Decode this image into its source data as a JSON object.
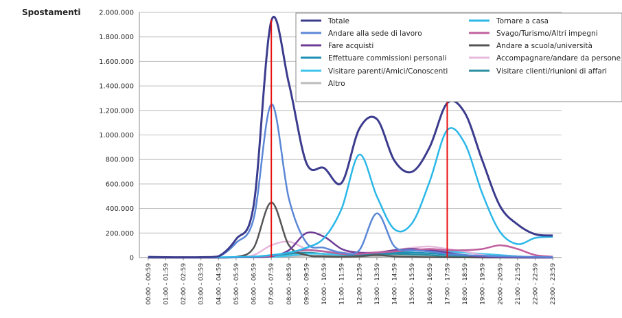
{
  "chart_data": {
    "type": "line",
    "ylabel": "Spostamenti",
    "ylim": [
      0,
      2000000
    ],
    "yticks": [
      "0",
      "200.000",
      "400.000",
      "600.000",
      "800.000",
      "1.000.000",
      "1.200.000",
      "1.400.000",
      "1.600.000",
      "1.800.000",
      "2.000.000"
    ],
    "ytick_values": [
      0,
      200000,
      400000,
      600000,
      800000,
      1000000,
      1200000,
      1400000,
      1600000,
      1800000,
      2000000
    ],
    "categories": [
      "00:00 - 00:59",
      "01:00 - 01:59",
      "02:00 - 02:59",
      "03:00 - 03:59",
      "04:00 - 04:59",
      "05:00 - 05:59",
      "06:00 - 06:59",
      "07:00 - 07:59",
      "08:00 - 08:59",
      "09:00 - 09:59",
      "10:00 - 10:59",
      "11:00 - 11:59",
      "12:00 - 12:59",
      "13:00 - 13:59",
      "14:00 - 14:59",
      "15:00 - 15:59",
      "16:00 - 16:59",
      "17:00 - 17:59",
      "18:00 - 18:59",
      "19:00 - 19:59",
      "20:00 - 20:59",
      "21:00 - 21:59",
      "22:00 - 22:59",
      "23:00 - 23:59"
    ],
    "grid": true,
    "legend_placement": "top-right",
    "vertical_markers": {
      "color": "#e8110f",
      "at_categories": [
        "07:00 - 07:59",
        "17:00 - 17:59"
      ]
    },
    "series": [
      {
        "name": "Totale",
        "color": "#3c3c8e",
        "values": [
          5000,
          3000,
          2000,
          3000,
          10000,
          150000,
          430000,
          1930000,
          1420000,
          770000,
          730000,
          610000,
          1050000,
          1130000,
          790000,
          700000,
          900000,
          1260000,
          1180000,
          790000,
          420000,
          270000,
          190000,
          180000
        ]
      },
      {
        "name": "Tornare a casa",
        "color": "#2ab7e8",
        "values": [
          3000,
          2000,
          1000,
          1000,
          2000,
          5000,
          8000,
          20000,
          40000,
          80000,
          160000,
          400000,
          840000,
          500000,
          230000,
          280000,
          620000,
          1040000,
          930000,
          520000,
          210000,
          110000,
          160000,
          170000
        ]
      },
      {
        "name": "Andare alla sede di lavoro",
        "color": "#5b87d6",
        "values": [
          2000,
          2000,
          1000,
          2000,
          8000,
          120000,
          320000,
          1250000,
          480000,
          120000,
          80000,
          40000,
          60000,
          360000,
          90000,
          60000,
          50000,
          30000,
          20000,
          15000,
          10000,
          8000,
          5000,
          3000
        ]
      },
      {
        "name": "Svago/Turismo/Altri impegni",
        "color": "#c0609e",
        "values": [
          5000,
          3000,
          2000,
          1000,
          1000,
          2000,
          5000,
          15000,
          40000,
          60000,
          50000,
          30000,
          30000,
          40000,
          50000,
          60000,
          70000,
          60000,
          60000,
          70000,
          100000,
          70000,
          20000,
          8000
        ]
      },
      {
        "name": "Fare acquisti",
        "color": "#6f3c96",
        "values": [
          0,
          0,
          0,
          0,
          0,
          1000,
          2000,
          10000,
          60000,
          200000,
          170000,
          70000,
          40000,
          40000,
          60000,
          70000,
          60000,
          40000,
          20000,
          8000,
          3000,
          1000,
          0,
          0
        ]
      },
      {
        "name": "Andare a scuola/università",
        "color": "#555555",
        "values": [
          0,
          0,
          0,
          0,
          0,
          5000,
          80000,
          450000,
          100000,
          20000,
          10000,
          5000,
          10000,
          20000,
          10000,
          5000,
          3000,
          2000,
          1000,
          0,
          0,
          0,
          0,
          0
        ]
      },
      {
        "name": "Effettuare commissioni personali",
        "color": "#1b8fb4",
        "values": [
          0,
          0,
          0,
          0,
          0,
          1000,
          3000,
          15000,
          40000,
          60000,
          50000,
          30000,
          30000,
          30000,
          40000,
          40000,
          35000,
          25000,
          15000,
          8000,
          3000,
          1000,
          0,
          0
        ]
      },
      {
        "name": "Accompagnare/andare da persone",
        "color": "#e6b8dc",
        "values": [
          0,
          0,
          0,
          0,
          0,
          5000,
          20000,
          100000,
          130000,
          70000,
          50000,
          40000,
          40000,
          45000,
          60000,
          80000,
          90000,
          70000,
          50000,
          20000,
          8000,
          3000,
          1000,
          0
        ]
      },
      {
        "name": "Visitare parenti/Amici/Conoscenti",
        "color": "#3fc4ec",
        "values": [
          0,
          0,
          0,
          0,
          0,
          1000,
          2000,
          5000,
          15000,
          30000,
          30000,
          25000,
          30000,
          40000,
          50000,
          55000,
          60000,
          50000,
          40000,
          30000,
          20000,
          10000,
          3000,
          1000
        ]
      },
      {
        "name": "Visitare clienti/riunioni di affari",
        "color": "#2a8fa0",
        "values": [
          0,
          0,
          0,
          0,
          0,
          1000,
          3000,
          10000,
          30000,
          40000,
          30000,
          20000,
          20000,
          25000,
          30000,
          25000,
          20000,
          10000,
          5000,
          2000,
          1000,
          0,
          0,
          0
        ]
      },
      {
        "name": "Altro",
        "color": "#bbbbbb",
        "values": [
          0,
          0,
          0,
          0,
          0,
          1000,
          2000,
          5000,
          10000,
          15000,
          15000,
          10000,
          10000,
          10000,
          15000,
          15000,
          15000,
          10000,
          8000,
          5000,
          3000,
          1000,
          0,
          0
        ]
      }
    ]
  }
}
